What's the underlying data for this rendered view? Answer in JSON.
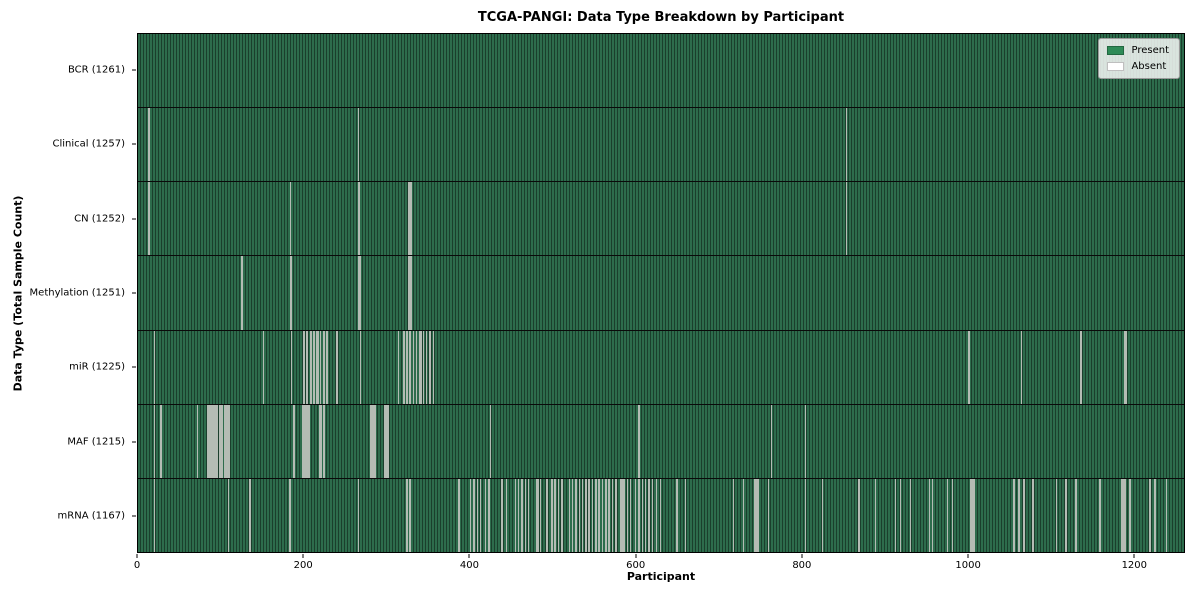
{
  "figure": {
    "title": "TCGA-PANGI: Data Type Breakdown by Participant",
    "xlabel": "Participant",
    "ylabel": "Data Type (Total Sample Count)"
  },
  "legend": {
    "items": [
      {
        "label": "Present",
        "color": "#2e8b57"
      },
      {
        "label": "Absent",
        "color": "#ffffff"
      }
    ]
  },
  "chart_data": {
    "type": "heatmap",
    "title": "TCGA-PANGI: Data Type Breakdown by Participant",
    "xlabel": "Participant",
    "ylabel": "Data Type (Total Sample Count)",
    "legend_position": "upper right",
    "grid": false,
    "x_range": [
      0,
      1261
    ],
    "x_ticks": [
      0,
      200,
      400,
      600,
      800,
      1000,
      1200
    ],
    "total_participants": 1261,
    "colors": {
      "present": "#2e8b57",
      "absent": "#ffffff",
      "cell_light": "#2d6c4c",
      "cell_edge": "#1a3f2c",
      "absent_stripe": "#b4bcb4"
    },
    "rows": [
      {
        "label": "BCR",
        "count": 1261,
        "absent": []
      },
      {
        "label": "Clinical",
        "count": 1257,
        "absent": [
          13,
          14,
          266,
          854
        ]
      },
      {
        "label": "CN",
        "count": 1252,
        "absent": [
          13,
          14,
          184,
          266,
          267,
          327,
          328,
          329,
          854
        ]
      },
      {
        "label": "Methylation",
        "count": 1251,
        "absent": [
          125,
          126,
          184,
          185,
          266,
          267,
          268,
          327,
          328,
          329
        ]
      },
      {
        "label": "miR",
        "count": 1225,
        "absent": [
          20,
          151,
          185,
          200,
          201,
          204,
          208,
          209,
          212,
          216,
          217,
          220,
          224,
          225,
          228,
          240,
          268,
          314,
          320,
          321,
          324,
          328,
          332,
          336,
          340,
          341,
          344,
          348,
          352,
          356,
          1002,
          1065,
          1137,
          1189,
          1190,
          1191
        ]
      },
      {
        "label": "MAF",
        "count": 1215,
        "absent": [
          20,
          28,
          72,
          84,
          85,
          86,
          88,
          89,
          90,
          91,
          92,
          94,
          96,
          98,
          100,
          102,
          104,
          106,
          108,
          110,
          188,
          199,
          200,
          201,
          202,
          203,
          204,
          205,
          207,
          219,
          220,
          221,
          224,
          280,
          281,
          282,
          283,
          284,
          286,
          298,
          300,
          302,
          425,
          604,
          764,
          805
        ]
      },
      {
        "label": "mRNA",
        "count": 1167,
        "absent": [
          20,
          109,
          135,
          183,
          266,
          324,
          328,
          387,
          401,
          405,
          409,
          413,
          419,
          423,
          439,
          444,
          455,
          459,
          463,
          467,
          471,
          481,
          483,
          485,
          493,
          499,
          503,
          507,
          511,
          520,
          524,
          528,
          532,
          536,
          540,
          544,
          548,
          552,
          556,
          560,
          564,
          568,
          572,
          576,
          582,
          584,
          586,
          590,
          594,
          600,
          604,
          608,
          612,
          616,
          620,
          625,
          630,
          650,
          660,
          718,
          730,
          744,
          746,
          748,
          760,
          805,
          825,
          869,
          889,
          913,
          919,
          931,
          954,
          958,
          976,
          982,
          1004,
          1006,
          1008,
          1056,
          1062,
          1068,
          1079,
          1107,
          1119,
          1131,
          1160,
          1186,
          1188,
          1190,
          1196,
          1220,
          1226,
          1240
        ]
      }
    ]
  }
}
